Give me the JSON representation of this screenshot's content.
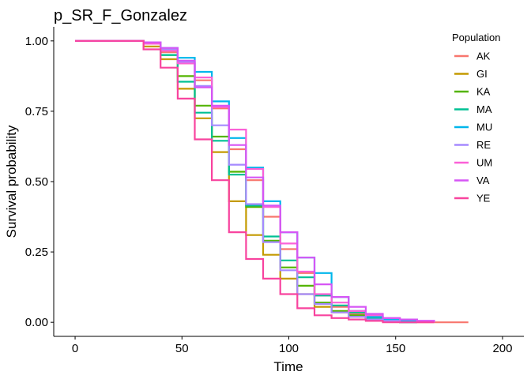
{
  "chart_data": {
    "type": "line",
    "subtype": "step",
    "title": "p_SR_F_Gonzalez",
    "xlabel": "Time",
    "ylabel": "Survival probability",
    "xlim": [
      -10,
      210
    ],
    "ylim": [
      -0.05,
      1.05
    ],
    "x_ticks": [
      0,
      50,
      100,
      150,
      200
    ],
    "y_ticks": [
      0.0,
      0.25,
      0.5,
      0.75,
      1.0
    ],
    "x_tick_labels": [
      "0",
      "50",
      "100",
      "150",
      "200"
    ],
    "y_tick_labels": [
      "0.00",
      "0.25",
      "0.50",
      "0.75",
      "1.00"
    ],
    "grid": false,
    "legend": {
      "title": "Population",
      "position": "right"
    },
    "series": [
      {
        "name": "AK",
        "color": "#F8766D",
        "x": [
          0,
          32,
          40,
          48,
          56,
          64,
          72,
          80,
          88,
          96,
          104,
          112,
          120,
          128,
          136,
          144,
          152,
          160,
          168,
          176,
          184
        ],
        "y": [
          1.0,
          0.995,
          0.96,
          0.92,
          0.86,
          0.76,
          0.615,
          0.505,
          0.375,
          0.26,
          0.175,
          0.095,
          0.055,
          0.03,
          0.015,
          0.01,
          0.005,
          0.0,
          0.0,
          0.0,
          0.0
        ]
      },
      {
        "name": "GI",
        "color": "#C49A00",
        "x": [
          0,
          32,
          40,
          48,
          56,
          64,
          72,
          80,
          88,
          96,
          104,
          112,
          120,
          128,
          136,
          144,
          152,
          160
        ],
        "y": [
          1.0,
          0.98,
          0.935,
          0.83,
          0.725,
          0.605,
          0.43,
          0.31,
          0.24,
          0.155,
          0.1,
          0.055,
          0.035,
          0.02,
          0.01,
          0.005,
          0.0,
          0.0
        ]
      },
      {
        "name": "KA",
        "color": "#53B400",
        "x": [
          0,
          32,
          40,
          48,
          56,
          64,
          72,
          80,
          88,
          96,
          104,
          112,
          120,
          128,
          136,
          144,
          152,
          160
        ],
        "y": [
          1.0,
          0.99,
          0.95,
          0.875,
          0.77,
          0.66,
          0.535,
          0.41,
          0.29,
          0.195,
          0.13,
          0.07,
          0.04,
          0.025,
          0.015,
          0.005,
          0.0,
          0.0
        ]
      },
      {
        "name": "MA",
        "color": "#00C094",
        "x": [
          0,
          32,
          40,
          48,
          56,
          64,
          72,
          80,
          88,
          96,
          104,
          112,
          120,
          128,
          136,
          144,
          152,
          160
        ],
        "y": [
          1.0,
          0.99,
          0.95,
          0.855,
          0.745,
          0.645,
          0.525,
          0.415,
          0.305,
          0.22,
          0.16,
          0.095,
          0.06,
          0.035,
          0.015,
          0.005,
          0.0,
          0.0
        ]
      },
      {
        "name": "MU",
        "color": "#00B6EB",
        "x": [
          0,
          32,
          40,
          48,
          56,
          64,
          72,
          80,
          88,
          96,
          104,
          112,
          120,
          128,
          136,
          144,
          152,
          160
        ],
        "y": [
          1.0,
          0.995,
          0.975,
          0.94,
          0.89,
          0.785,
          0.655,
          0.55,
          0.43,
          0.32,
          0.23,
          0.175,
          0.09,
          0.04,
          0.02,
          0.01,
          0.005,
          0.0
        ]
      },
      {
        "name": "RE",
        "color": "#A58AFF",
        "x": [
          0,
          32,
          40,
          48,
          56,
          64,
          72,
          80,
          88,
          96,
          104,
          112,
          120,
          128,
          136,
          144,
          152,
          160
        ],
        "y": [
          1.0,
          0.995,
          0.97,
          0.925,
          0.84,
          0.7,
          0.56,
          0.42,
          0.285,
          0.185,
          0.1,
          0.065,
          0.035,
          0.02,
          0.01,
          0.005,
          0.0,
          0.0
        ]
      },
      {
        "name": "UM",
        "color": "#FB61D7",
        "x": [
          0,
          32,
          40,
          48,
          56,
          64,
          72,
          80,
          88,
          96,
          104,
          112,
          120,
          128,
          136,
          144,
          152,
          160,
          168
        ],
        "y": [
          1.0,
          0.99,
          0.965,
          0.92,
          0.87,
          0.765,
          0.685,
          0.545,
          0.41,
          0.28,
          0.18,
          0.1,
          0.07,
          0.04,
          0.025,
          0.015,
          0.01,
          0.005,
          0.0
        ]
      },
      {
        "name": "VA",
        "color": "#D655F5",
        "x": [
          0,
          32,
          40,
          48,
          56,
          64,
          72,
          80,
          88,
          96,
          104,
          112,
          120,
          128,
          136,
          144,
          152,
          160,
          168
        ],
        "y": [
          1.0,
          0.995,
          0.975,
          0.93,
          0.835,
          0.77,
          0.63,
          0.515,
          0.415,
          0.32,
          0.23,
          0.135,
          0.09,
          0.055,
          0.03,
          0.015,
          0.01,
          0.005,
          0.0
        ]
      },
      {
        "name": "YE",
        "color": "#F8439E",
        "x": [
          0,
          32,
          40,
          48,
          56,
          64,
          72,
          80,
          88,
          96,
          104,
          112,
          120,
          128,
          136,
          144,
          152,
          160,
          168
        ],
        "y": [
          1.0,
          0.97,
          0.905,
          0.795,
          0.65,
          0.505,
          0.32,
          0.225,
          0.155,
          0.1,
          0.05,
          0.025,
          0.015,
          0.01,
          0.005,
          0.0,
          0.0,
          0.0,
          0.0
        ]
      }
    ]
  }
}
